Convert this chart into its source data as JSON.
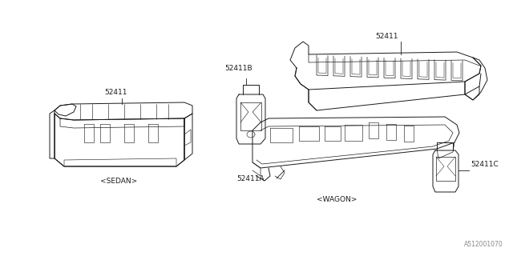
{
  "bg_color": "#ffffff",
  "line_color": "#1a1a1a",
  "text_color": "#1a1a1a",
  "fig_width": 6.4,
  "fig_height": 3.2,
  "dpi": 100,
  "part_number_sedan": "52411",
  "part_number_wagon_main": "52411",
  "part_number_wagon_A": "52411A",
  "part_number_wagon_B": "52411B",
  "part_number_wagon_C": "52411C",
  "label_sedan": "<SEDAN>",
  "label_wagon": "<WAGON>",
  "diagram_id": "A512001070",
  "lw": 0.7
}
